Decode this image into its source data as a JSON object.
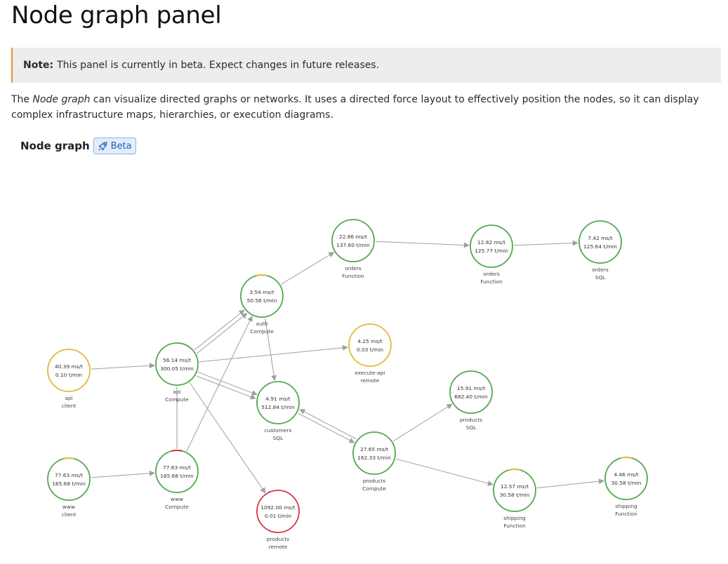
{
  "page": {
    "title": "Node graph panel",
    "note_label": "Note:",
    "note_text": "This panel is currently in beta. Expect changes in future releases.",
    "desc_before": "The ",
    "desc_em": "Node graph",
    "desc_after": " can visualize directed graphs or networks. It uses a directed force layout to effectively position the nodes, so it can display complex infrastructure maps, hierarchies, or execution diagrams."
  },
  "panel": {
    "title": "Node graph",
    "badge": "Beta",
    "badge_icon": "rocket-icon"
  },
  "colors": {
    "ok": "#52a84f",
    "warn": "#e6b83a",
    "error": "#d9334a",
    "edge": "#9e9e9e"
  },
  "graph": {
    "nodes": [
      {
        "id": "orders-function-1",
        "stat1": "22.86 ms/t",
        "stat2": "137.60 t/min",
        "title": "orders",
        "subtitle": "Function",
        "status": "ok"
      },
      {
        "id": "orders-function-2",
        "stat1": "12.82 ms/t",
        "stat2": "125.77 t/min",
        "title": "orders",
        "subtitle": "Function",
        "status": "ok"
      },
      {
        "id": "orders-sql",
        "stat1": "7.42 ms/t",
        "stat2": "125.64 t/min",
        "title": "orders",
        "subtitle": "SQL",
        "status": "ok"
      },
      {
        "id": "auth-compute",
        "stat1": "3.54 ms/t",
        "stat2": "50.56 t/min",
        "title": "auth",
        "subtitle": "Compute",
        "status": "ok",
        "arc": "warn"
      },
      {
        "id": "execute-api-remote",
        "stat1": "4.25 ms/t",
        "stat2": "0.03 t/min",
        "title": "execute-api",
        "subtitle": "remote",
        "status": "warn"
      },
      {
        "id": "api-client",
        "stat1": "40.39 ms/t",
        "stat2": "0.10 t/min",
        "title": "api",
        "subtitle": "client",
        "status": "warn"
      },
      {
        "id": "api-compute",
        "stat1": "56.14 ms/t",
        "stat2": "300.05 t/min",
        "title": "api",
        "subtitle": "Compute",
        "status": "ok"
      },
      {
        "id": "customers-sql",
        "stat1": "4.91 ms/t",
        "stat2": "512.84 t/min",
        "title": "customers",
        "subtitle": "SQL",
        "status": "ok"
      },
      {
        "id": "products-sql",
        "stat1": "15.91 ms/t",
        "stat2": "682.40 t/min",
        "title": "products",
        "subtitle": "SQL",
        "status": "ok"
      },
      {
        "id": "products-compute",
        "stat1": "27.65 ms/t",
        "stat2": "162.33 t/min",
        "title": "products",
        "subtitle": "Compute",
        "status": "ok"
      },
      {
        "id": "www-client",
        "stat1": "77.63 ms/t",
        "stat2": "165.68 t/min",
        "title": "www",
        "subtitle": "client",
        "status": "ok",
        "arc": "warn"
      },
      {
        "id": "www-compute",
        "stat1": "77.63 ms/t",
        "stat2": "165.68 t/min",
        "title": "www",
        "subtitle": "Compute",
        "status": "ok",
        "arc": "error"
      },
      {
        "id": "products-remote",
        "stat1": "1092.00 ms/t",
        "stat2": "0.01 t/min",
        "title": "products",
        "subtitle": "remote",
        "status": "error"
      },
      {
        "id": "shipping-function-1",
        "stat1": "12.57 ms/t",
        "stat2": "30.58 t/min",
        "title": "shipping",
        "subtitle": "Function",
        "status": "ok",
        "arc": "warn"
      },
      {
        "id": "shipping-function-2",
        "stat1": "4.46 ms/t",
        "stat2": "30.58 t/min",
        "title": "shipping",
        "subtitle": "Function",
        "status": "ok",
        "arc": "warn"
      }
    ],
    "edges": [
      {
        "from": "auth-compute",
        "to": "orders-function-1"
      },
      {
        "from": "orders-function-1",
        "to": "orders-function-2"
      },
      {
        "from": "orders-function-2",
        "to": "orders-sql"
      },
      {
        "from": "api-client",
        "to": "api-compute"
      },
      {
        "from": "api-compute",
        "to": "auth-compute"
      },
      {
        "from": "api-compute",
        "to": "auth-compute",
        "offset": 6
      },
      {
        "from": "api-compute",
        "to": "execute-api-remote"
      },
      {
        "from": "api-compute",
        "to": "customers-sql"
      },
      {
        "from": "api-compute",
        "to": "customers-sql",
        "offset": 6
      },
      {
        "from": "api-compute",
        "to": "products-remote"
      },
      {
        "from": "api-compute",
        "to": "www-compute",
        "plain": true
      },
      {
        "from": "auth-compute",
        "to": "customers-sql"
      },
      {
        "from": "customers-sql",
        "to": "products-compute"
      },
      {
        "from": "products-compute",
        "to": "customers-sql",
        "offset": 6
      },
      {
        "from": "products-compute",
        "to": "products-sql"
      },
      {
        "from": "products-compute",
        "to": "shipping-function-1"
      },
      {
        "from": "shipping-function-1",
        "to": "shipping-function-2"
      },
      {
        "from": "www-client",
        "to": "www-compute"
      },
      {
        "from": "www-compute",
        "to": "auth-compute"
      }
    ]
  }
}
